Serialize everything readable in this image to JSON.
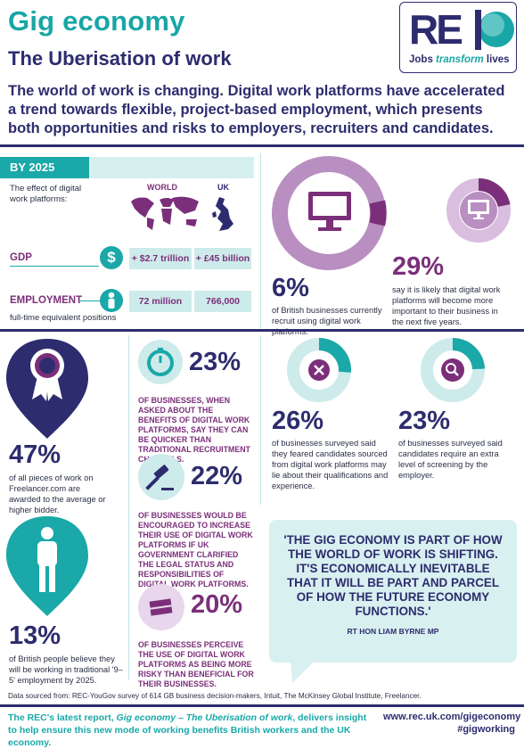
{
  "header": {
    "title": "Gig economy",
    "subtitle": "The Uberisation of work",
    "intro": "The world of work is changing. Digital work platforms have accelerated a trend towards flexible, project-based employment, which presents both opportunities and risks to employers, recruiters and candidates."
  },
  "logo": {
    "letters": "REC",
    "tagline_a": "Jobs ",
    "tagline_b": "transform",
    "tagline_c": " lives"
  },
  "by2025": {
    "label": "BY 2025",
    "effect_text": "The effect of digital work platforms:",
    "world_label": "WORLD",
    "uk_label": "UK",
    "gdp_label": "GDP",
    "gdp_world": "+ $2.7 trillion",
    "gdp_uk": "+ £45 billion",
    "employment_label": "EMPLOYMENT",
    "emp_world": "72 million",
    "emp_uk": "766,000",
    "fte_note": "full-time equivalent positions",
    "dollar_icon": "$"
  },
  "recruit": {
    "pct6": "6%",
    "text6": "of British businesses currently recruit using digital work platforms.",
    "pct29": "29%",
    "text29": "say it is likely that digital work platforms will become more important to their business in the next five years."
  },
  "freelancer": {
    "pct": "47%",
    "text": "of all pieces of work on Freelancer.com are awarded to the average or higher bidder."
  },
  "nine_five": {
    "pct": "13%",
    "text": "of British people believe they will be working in traditional '9–5' employment by 2025."
  },
  "mid": {
    "pct23": "23%",
    "cap23": "OF BUSINESSES, WHEN ASKED ABOUT THE BENEFITS OF DIGITAL WORK PLATFORMS, SAY THEY CAN BE QUICKER THAN TRADITIONAL RECRUITMENT CHANNELS.",
    "pct22": "22%",
    "cap22": "OF BUSINESSES WOULD BE ENCOURAGED TO INCREASE THEIR USE OF DIGITAL WORK PLATFORMS IF UK GOVERNMENT CLARIFIED THE LEGAL STATUS AND RESPONSIBILITIES OF DIGITAL WORK PLATFORMS.",
    "pct20": "20%",
    "cap20": "OF BUSINESSES PERCEIVE THE USE OF DIGITAL WORK PLATFORMS AS BEING MORE RISKY THAN BENEFICIAL FOR THEIR BUSINESSES."
  },
  "right": {
    "pct26": "26%",
    "text26": "of businesses surveyed said they feared candidates sourced from digital work platforms may lie about their qualifications and experience.",
    "pct23b": "23%",
    "text23b": "of businesses surveyed said candidates require an extra level of screening by the employer."
  },
  "quote": {
    "text": "'THE GIG ECONOMY IS PART OF HOW THE WORLD OF WORK IS SHIFTING. IT'S ECONOMICALLY INEVITABLE THAT IT WILL BE PART AND PARCEL OF HOW THE FUTURE ECONOMY FUNCTIONS.'",
    "attribution": "RT HON LIAM BYRNE MP"
  },
  "footer": {
    "source": "Data sourced from: REC-YouGov survey of 614 GB business decision-makers, Intuit, The McKinsey Global Institute, Freelancer.",
    "report_a": "The REC's latest report, ",
    "report_b": "Gig economy – The Uberisation of work",
    "report_c": ", delivers insight to help ensure this new mode of working benefits British workers and the UK economy.",
    "url": "www.rec.uk.com/gigeconomy",
    "hashtag": "#gigworking"
  },
  "colors": {
    "teal": "#1aa8a8",
    "purple": "#7b2f7a",
    "navy": "#2d2c6e",
    "lilac": "#b88fc0",
    "pale_teal": "#cdebeb"
  }
}
